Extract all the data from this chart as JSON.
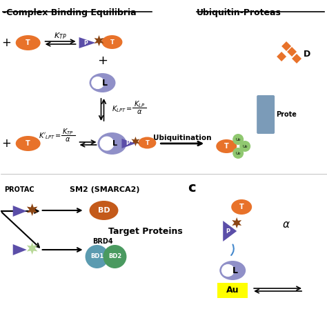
{
  "title_left": "-Complex Binding Equilibria",
  "title_right": "Ubiquitin-Proteas",
  "bg_color": "#ffffff",
  "orange": "#E8722A",
  "dark_orange": "#C45A1A",
  "purple": "#5B4EA8",
  "light_purple": "#9090C8",
  "blue_gray": "#7B9BB8",
  "green_light": "#90C878",
  "green_dark": "#4A9A60",
  "brown_star": "#8B4513",
  "yellow": "#FFFF00",
  "teal": "#5B9BB0",
  "text_color": "#000000",
  "section_c_label": "c",
  "label_protac": "PROTAC",
  "label_sm2": "SM2 (SMARCA2)",
  "label_bd": "BD",
  "label_brd4": "BRD4",
  "label_bd1": "BD1",
  "label_bd2": "BD2",
  "label_target_proteins": "Target Proteins",
  "label_ubiquitination": "Ubiquitination",
  "label_au": "Au",
  "label_proteasome": "Prote",
  "label_degraded": "D",
  "label_ub": "Ub",
  "label_t": "T",
  "label_l": "L",
  "label_p": "P"
}
